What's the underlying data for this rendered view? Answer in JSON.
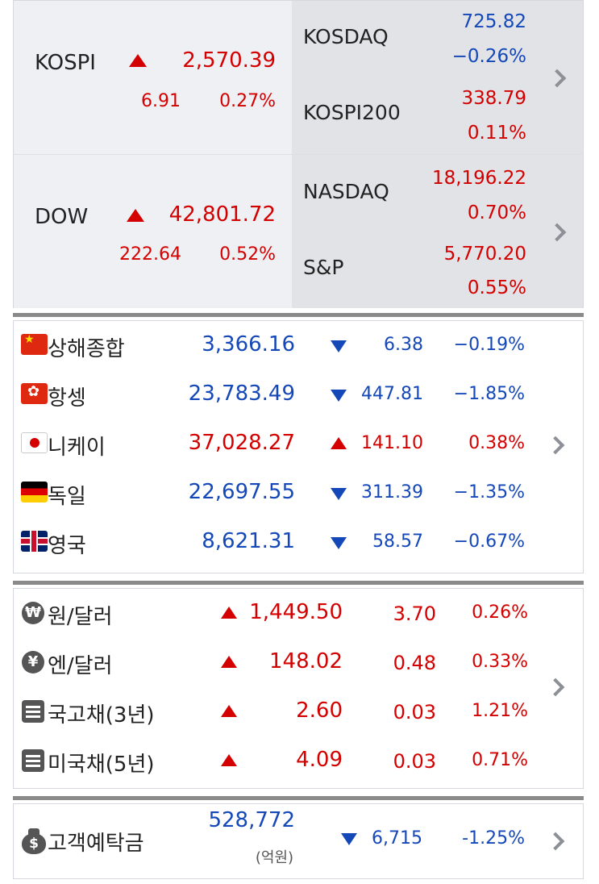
{
  "top_indices": [
    {
      "main": {
        "name": "KOSPI",
        "direction": "up",
        "value": "2,570.39",
        "change": "6.91",
        "percent": "0.27%",
        "color": "red"
      },
      "side": [
        {
          "name": "KOSDAQ",
          "value": "725.82",
          "percent": "−0.26%",
          "value_color": "blue",
          "percent_color": "blue"
        },
        {
          "name": "KOSPI200",
          "value": "338.79",
          "percent": "0.11%",
          "value_color": "red",
          "percent_color": "red"
        }
      ]
    },
    {
      "main": {
        "name": "DOW",
        "direction": "up",
        "value": "42,801.72",
        "change": "222.64",
        "percent": "0.52%",
        "color": "red"
      },
      "side": [
        {
          "name": "NASDAQ",
          "value": "18,196.22",
          "percent": "0.70%",
          "value_color": "red",
          "percent_color": "red"
        },
        {
          "name": "S&P",
          "value": "5,770.20",
          "percent": "0.55%",
          "value_color": "red",
          "percent_color": "red"
        }
      ]
    }
  ],
  "world_indices": [
    {
      "icon": "china-flag-icon",
      "flag": "cn",
      "name": "상해종합",
      "value": "3,366.16",
      "direction": "down",
      "change": "6.38",
      "percent": "−0.19%"
    },
    {
      "icon": "hongkong-flag-icon",
      "flag": "hk",
      "name": "항셍",
      "value": "23,783.49",
      "direction": "down",
      "change": "447.81",
      "percent": "−1.85%"
    },
    {
      "icon": "japan-flag-icon",
      "flag": "jp",
      "name": "니케이",
      "value": "37,028.27",
      "direction": "up",
      "change": "141.10",
      "percent": "0.38%"
    },
    {
      "icon": "germany-flag-icon",
      "flag": "de",
      "name": "독일",
      "value": "22,697.55",
      "direction": "down",
      "change": "311.39",
      "percent": "−1.35%"
    },
    {
      "icon": "uk-flag-icon",
      "flag": "gb",
      "name": "영국",
      "value": "8,621.31",
      "direction": "down",
      "change": "58.57",
      "percent": "−0.67%"
    }
  ],
  "rates": [
    {
      "icon": "won-coin-icon",
      "glyph": "₩",
      "name": "원/달러",
      "direction": "up",
      "value": "1,449.50",
      "change": "3.70",
      "percent": "0.26%"
    },
    {
      "icon": "yen-coin-icon",
      "glyph": "¥",
      "name": "엔/달러",
      "direction": "up",
      "value": "148.02",
      "change": "0.48",
      "percent": "0.33%"
    },
    {
      "icon": "bond-document-icon",
      "glyph": "",
      "name": "국고채(3년)",
      "direction": "up",
      "value": "2.60",
      "change": "0.03",
      "percent": "1.21%"
    },
    {
      "icon": "bond-document-icon",
      "glyph": "",
      "name": "미국채(5년)",
      "direction": "up",
      "value": "4.09",
      "change": "0.03",
      "percent": "0.71%"
    }
  ],
  "deposit": {
    "icon": "money-bag-icon",
    "glyph": "$",
    "name": "고객예탁금",
    "value": "528,772",
    "unit": "(억원)",
    "direction": "down",
    "change": "6,715",
    "percent": "-1.25%"
  },
  "colors": {
    "up": "#d40000",
    "down": "#1447b8",
    "chevron": "#8d9097",
    "divider": "#8a8a8a"
  }
}
